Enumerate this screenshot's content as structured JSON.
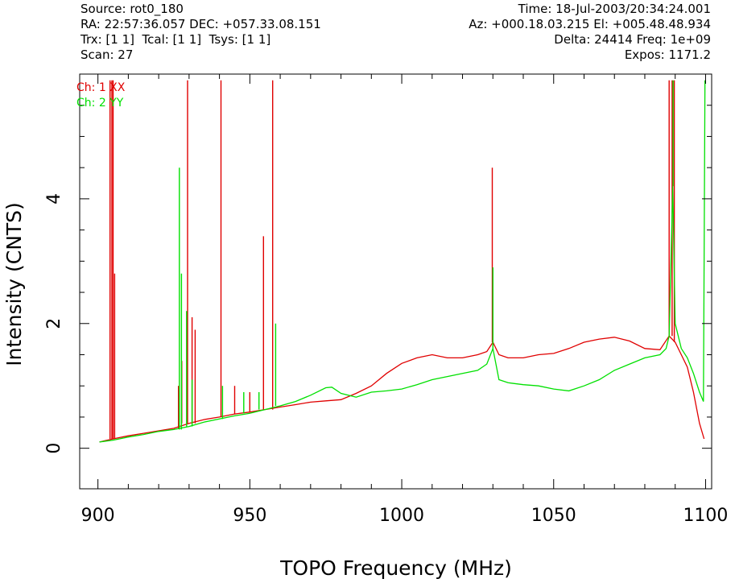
{
  "header": {
    "source": "Source: rot0_180",
    "ra_dec": "RA: 22:57:36.057 DEC: +057.33.08.151",
    "trx": "Trx: [1 1]  Tcal: [1 1]  Tsys: [1 1]",
    "scan": "Scan: 27",
    "time": "Time: 18-Jul-2003/20:34:24.001",
    "az_el": "Az: +000.18.03.215 El: +005.48.48.934",
    "delta_freq": "Delta: 24414 Freq: 1e+09",
    "expos": "Expos: 1171.2"
  },
  "colors": {
    "xx": "#e00000",
    "yy": "#00e000",
    "axis": "#000000"
  },
  "chart_data": {
    "type": "line",
    "xlabel": "TOPO Frequency (MHz)",
    "ylabel": "Intensity (CNTS)",
    "xlim": [
      894,
      1102
    ],
    "ylim": [
      -0.65,
      6.0
    ],
    "xticks": [
      900,
      950,
      1000,
      1050,
      1100
    ],
    "yticks": [
      0,
      2,
      4
    ],
    "legend": [
      "Ch: 1 XX",
      "Ch: 2 YY"
    ],
    "series": [
      {
        "name": "Ch: 1 XX",
        "baseline": [
          [
            900.5,
            0.1
          ],
          [
            905,
            0.15
          ],
          [
            910,
            0.2
          ],
          [
            915,
            0.24
          ],
          [
            920,
            0.28
          ],
          [
            925,
            0.32
          ],
          [
            930,
            0.4
          ],
          [
            935,
            0.46
          ],
          [
            940,
            0.5
          ],
          [
            945,
            0.55
          ],
          [
            950,
            0.58
          ],
          [
            955,
            0.62
          ],
          [
            960,
            0.66
          ],
          [
            965,
            0.7
          ],
          [
            970,
            0.74
          ],
          [
            975,
            0.76
          ],
          [
            980,
            0.78
          ],
          [
            985,
            0.88
          ],
          [
            990,
            1.0
          ],
          [
            995,
            1.2
          ],
          [
            1000,
            1.36
          ],
          [
            1005,
            1.45
          ],
          [
            1010,
            1.5
          ],
          [
            1015,
            1.45
          ],
          [
            1020,
            1.45
          ],
          [
            1025,
            1.5
          ],
          [
            1028,
            1.55
          ],
          [
            1030,
            1.7
          ],
          [
            1032,
            1.5
          ],
          [
            1035,
            1.45
          ],
          [
            1040,
            1.45
          ],
          [
            1045,
            1.5
          ],
          [
            1050,
            1.52
          ],
          [
            1055,
            1.6
          ],
          [
            1060,
            1.7
          ],
          [
            1065,
            1.75
          ],
          [
            1070,
            1.78
          ],
          [
            1075,
            1.72
          ],
          [
            1080,
            1.6
          ],
          [
            1085,
            1.58
          ],
          [
            1088,
            1.8
          ],
          [
            1090,
            1.7
          ],
          [
            1092,
            1.5
          ],
          [
            1094,
            1.3
          ],
          [
            1096,
            0.9
          ],
          [
            1098,
            0.4
          ],
          [
            1099.5,
            0.15
          ]
        ],
        "spikes": [
          [
            904,
            5.9
          ],
          [
            904.6,
            5.9
          ],
          [
            905,
            5.9
          ],
          [
            905.5,
            2.8
          ],
          [
            926.5,
            1.0
          ],
          [
            927.6,
            1.4
          ],
          [
            929.5,
            5.9
          ],
          [
            931,
            2.1
          ],
          [
            932,
            1.9
          ],
          [
            940.5,
            5.9
          ],
          [
            945,
            1.0
          ],
          [
            950,
            0.9
          ],
          [
            954.5,
            3.4
          ],
          [
            957.5,
            5.9
          ],
          [
            1029.8,
            4.5
          ],
          [
            1088,
            5.9
          ],
          [
            1089,
            5.9
          ],
          [
            1089.7,
            5.9
          ]
        ]
      },
      {
        "name": "Ch: 2 YY",
        "baseline": [
          [
            900.5,
            0.1
          ],
          [
            905,
            0.13
          ],
          [
            910,
            0.18
          ],
          [
            915,
            0.22
          ],
          [
            920,
            0.27
          ],
          [
            925,
            0.3
          ],
          [
            930,
            0.35
          ],
          [
            935,
            0.42
          ],
          [
            940,
            0.47
          ],
          [
            945,
            0.52
          ],
          [
            950,
            0.56
          ],
          [
            955,
            0.62
          ],
          [
            960,
            0.68
          ],
          [
            965,
            0.75
          ],
          [
            970,
            0.85
          ],
          [
            975,
            0.97
          ],
          [
            977,
            0.98
          ],
          [
            980,
            0.88
          ],
          [
            985,
            0.82
          ],
          [
            990,
            0.9
          ],
          [
            995,
            0.92
          ],
          [
            1000,
            0.95
          ],
          [
            1005,
            1.02
          ],
          [
            1010,
            1.1
          ],
          [
            1015,
            1.15
          ],
          [
            1020,
            1.2
          ],
          [
            1025,
            1.25
          ],
          [
            1028,
            1.35
          ],
          [
            1030,
            1.6
          ],
          [
            1032,
            1.1
          ],
          [
            1035,
            1.05
          ],
          [
            1040,
            1.02
          ],
          [
            1045,
            1.0
          ],
          [
            1050,
            0.95
          ],
          [
            1055,
            0.92
          ],
          [
            1060,
            1.0
          ],
          [
            1065,
            1.1
          ],
          [
            1070,
            1.25
          ],
          [
            1075,
            1.35
          ],
          [
            1080,
            1.45
          ],
          [
            1085,
            1.5
          ],
          [
            1087,
            1.6
          ],
          [
            1088,
            1.8
          ],
          [
            1089.2,
            4.2
          ],
          [
            1090,
            2.0
          ],
          [
            1092,
            1.6
          ],
          [
            1094,
            1.45
          ],
          [
            1096,
            1.2
          ],
          [
            1098,
            0.9
          ],
          [
            1099.3,
            0.75
          ],
          [
            1099.8,
            5.9
          ]
        ],
        "spikes": [
          [
            926.8,
            4.5
          ],
          [
            927.5,
            2.8
          ],
          [
            929.2,
            2.2
          ],
          [
            931,
            1.1
          ],
          [
            941,
            1.0
          ],
          [
            948,
            0.9
          ],
          [
            953,
            0.9
          ],
          [
            958.5,
            2.0
          ],
          [
            1030,
            2.9
          ],
          [
            1089.3,
            5.9
          ]
        ]
      }
    ]
  }
}
